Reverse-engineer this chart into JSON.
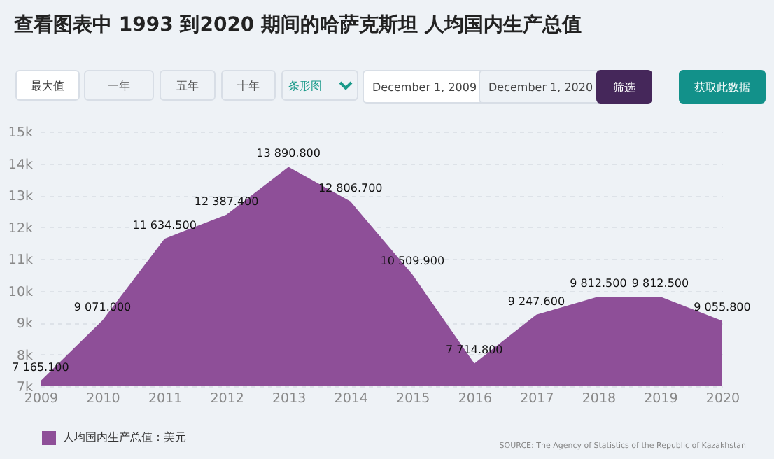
{
  "chart_data": {
    "type": "area",
    "title": "查看图表中 1993 到2020 期间的哈萨克斯坦 人均国内生产总值",
    "x": [
      2009,
      2010,
      2011,
      2012,
      2013,
      2014,
      2015,
      2016,
      2017,
      2018,
      2019,
      2020
    ],
    "series": [
      {
        "name": "人均国内生产总值：美元",
        "color": "#8e4f98",
        "values": [
          7165.1,
          9071.0,
          11634.5,
          12387.4,
          13890.8,
          12806.7,
          10509.9,
          7714.8,
          9247.6,
          9812.5,
          9812.5,
          9055.8
        ],
        "value_labels": [
          "7 165.100",
          "9 071.000",
          "11 634.500",
          "12 387.400",
          "13 890.800",
          "12 806.700",
          "10 509.900",
          "7 714.800",
          "9 247.600",
          "9 812.500",
          "9 812.500",
          "9 055.800"
        ]
      }
    ],
    "xlim": [
      2009,
      2020
    ],
    "xticks": [
      2009,
      2010,
      2011,
      2012,
      2013,
      2014,
      2015,
      2016,
      2017,
      2018,
      2019,
      2020
    ],
    "ylim": [
      7000,
      15000
    ],
    "yticks": [
      {
        "value": 7000,
        "label": "7k"
      },
      {
        "value": 8000,
        "label": "8k"
      },
      {
        "value": 9000,
        "label": "9k"
      },
      {
        "value": 10000,
        "label": "10k"
      },
      {
        "value": 11000,
        "label": "11k"
      },
      {
        "value": 12000,
        "label": "12k"
      },
      {
        "value": 13000,
        "label": "13k"
      },
      {
        "value": 14000,
        "label": "14k"
      },
      {
        "value": 15000,
        "label": "15k"
      }
    ],
    "grid": "y",
    "legend": "bottom",
    "annotations": [
      "最大值",
      "一年",
      "五年",
      "十年",
      "条形图",
      "December 1, 2009",
      "December 1, 2020",
      "筛选",
      "获取此数据",
      "SOURCE: The Agency of Statistics of the Republic of Kazakhstan"
    ]
  }
}
